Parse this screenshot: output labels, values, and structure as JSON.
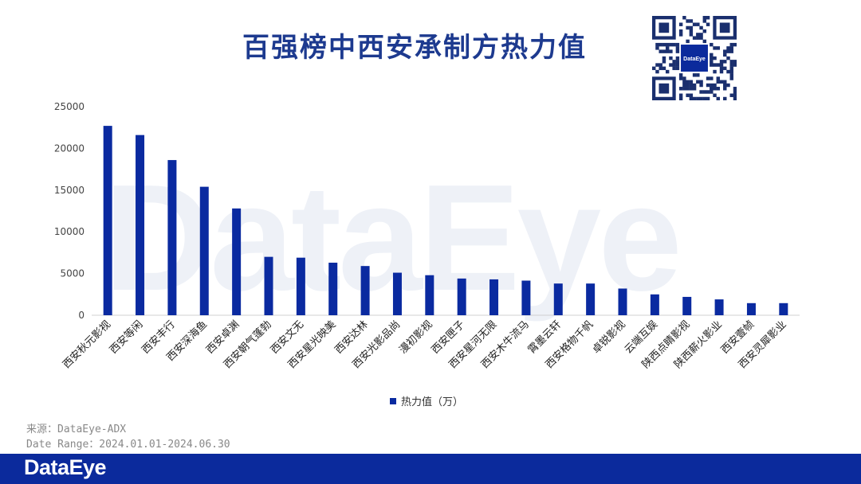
{
  "title": "百强榜中西安承制方热力值",
  "qr": {
    "center_label": "DataEye"
  },
  "watermark": "DataEye",
  "chart_data": {
    "type": "bar",
    "categories": [
      "西安秋元影视",
      "西安等闲",
      "西安丰行",
      "西安深海鱼",
      "西安卓渊",
      "西安朝气蓬勃",
      "西安文无",
      "西安星光映美",
      "西安达林",
      "西安光影品尚",
      "漫初影视",
      "西安匣子",
      "西安星河无限",
      "西安木牛流马",
      "霄墨云轩",
      "西安格物千帆",
      "卓锐影视",
      "云端互娱",
      "陕西点睛影视",
      "陕西薪火影业",
      "西安壹帧",
      "西安灵犀影业"
    ],
    "series": [
      {
        "name": "热力值（万）",
        "values": [
          22700,
          21600,
          18600,
          15400,
          12800,
          7000,
          6900,
          6300,
          5900,
          5100,
          4800,
          4400,
          4300,
          4150,
          3800,
          3800,
          3200,
          2500,
          2200,
          1900,
          1450,
          1450
        ]
      }
    ],
    "yticks": [
      0,
      5000,
      10000,
      15000,
      20000,
      25000
    ],
    "ylim": [
      0,
      25000
    ],
    "legend_position": "bottom",
    "grid": false
  },
  "source": {
    "line1": "来源：DataEye-ADX",
    "line2": "Date Range：2024.01.01-2024.06.30"
  },
  "footer": {
    "brand": "DataEye"
  },
  "colors": {
    "bar": "#0a2aa0",
    "title": "#1d3a8f",
    "footer": "#0b2a9c"
  }
}
